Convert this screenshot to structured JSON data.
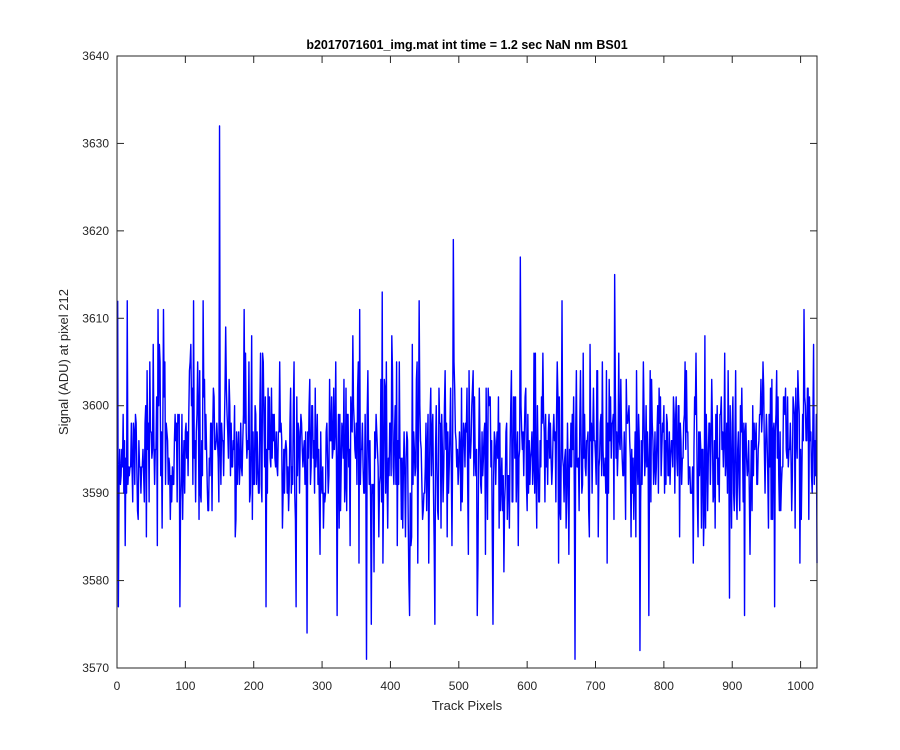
{
  "chart_data": {
    "type": "line",
    "title": "b2017071601_img.mat int time = 1.2 sec  NaN nm BS01",
    "xlabel": "Track Pixels",
    "ylabel": "Signal (ADU) at pixel 212",
    "xlim": [
      0,
      1024
    ],
    "ylim": [
      3570,
      3640
    ],
    "xticks": [
      0,
      100,
      200,
      300,
      400,
      500,
      600,
      700,
      800,
      900,
      1000
    ],
    "yticks": [
      3570,
      3580,
      3590,
      3600,
      3610,
      3620,
      3630,
      3640
    ],
    "grid": false,
    "line_color": "#0000ff",
    "series": [
      {
        "n_points": 1024,
        "mean": 3595,
        "std": 5.5,
        "min": 3571,
        "max": 3632,
        "notable_points": [
          [
            2,
            3577
          ],
          [
            15,
            3612
          ],
          [
            68,
            3611
          ],
          [
            92,
            3577
          ],
          [
            112,
            3612
          ],
          [
            150,
            3632
          ],
          [
            186,
            3611
          ],
          [
            218,
            3577
          ],
          [
            262,
            3577
          ],
          [
            278,
            3574
          ],
          [
            322,
            3576
          ],
          [
            345,
            3608
          ],
          [
            355,
            3611
          ],
          [
            365,
            3571
          ],
          [
            372,
            3575
          ],
          [
            388,
            3613
          ],
          [
            465,
            3575
          ],
          [
            492,
            3619
          ],
          [
            550,
            3575
          ],
          [
            590,
            3617
          ],
          [
            670,
            3571
          ],
          [
            728,
            3615
          ],
          [
            765,
            3572
          ],
          [
            918,
            3576
          ],
          [
            962,
            3577
          ],
          [
            1005,
            3611
          ],
          [
            1024,
            3582
          ]
        ]
      }
    ]
  }
}
